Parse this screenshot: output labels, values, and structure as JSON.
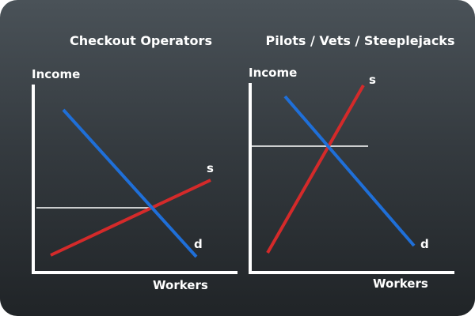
{
  "panels": [
    {
      "title": "Checkout Operators",
      "y_axis_label": "Income",
      "x_axis_label": "Workers",
      "supply_label": "s",
      "demand_label": "d"
    },
    {
      "title": "Pilots / Vets / Steeplejacks",
      "y_axis_label": "Income",
      "x_axis_label": "Workers",
      "supply_label": "s",
      "demand_label": "d"
    }
  ],
  "colors": {
    "supply": "#d42a2a",
    "demand": "#1f6fd8",
    "axis": "#ffffff",
    "equilibrium": "#ffffff"
  }
}
